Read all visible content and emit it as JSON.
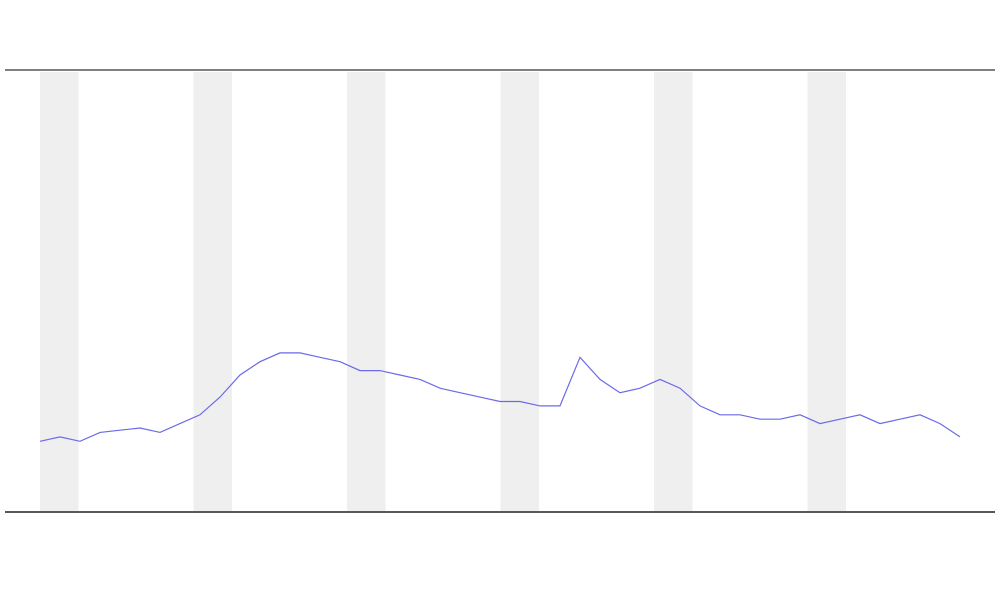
{
  "chart_data": {
    "type": "line",
    "x": [
      0,
      1,
      2,
      3,
      4,
      5,
      6,
      7,
      8,
      9,
      10,
      11,
      12,
      13,
      14,
      15,
      16,
      17,
      18,
      19,
      20,
      21,
      22,
      23,
      24,
      25,
      26,
      27,
      28,
      29,
      30,
      31,
      32,
      33,
      34,
      35,
      36,
      37,
      38,
      39,
      40,
      41,
      42,
      43,
      44,
      45,
      46
    ],
    "xlim": [
      -1.75,
      47.75
    ],
    "ylim": [
      0,
      100
    ],
    "series": [
      {
        "color": "#6a6ae8",
        "values": [
          16,
          17,
          16,
          18,
          18.5,
          19,
          18,
          20,
          22,
          26,
          31,
          34,
          36,
          36,
          35,
          34,
          32,
          32,
          31,
          30,
          28,
          27,
          26,
          25,
          25,
          24,
          24,
          35,
          30,
          27,
          28,
          30,
          28,
          24,
          22,
          22,
          21,
          21,
          22,
          20,
          21,
          22,
          20,
          21,
          22,
          20,
          17
        ]
      }
    ]
  }
}
